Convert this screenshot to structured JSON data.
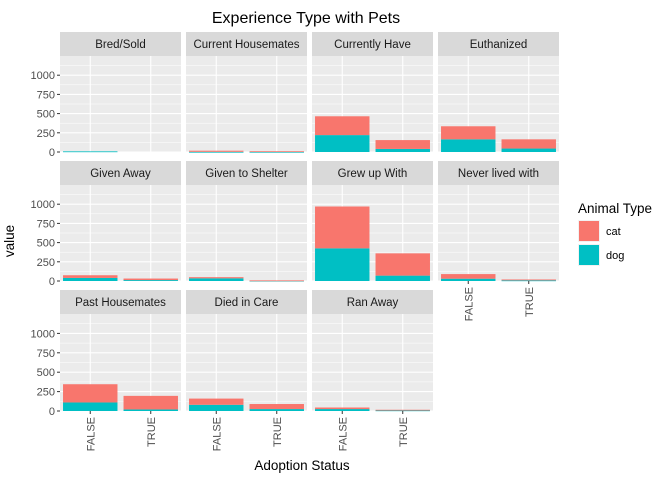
{
  "chart_data": {
    "type": "bar",
    "stacked": true,
    "faceted": true,
    "title": "Experience Type with Pets",
    "xlabel": "Adoption Status",
    "ylabel": "value",
    "categories": [
      "FALSE",
      "TRUE"
    ],
    "ylim": [
      0,
      1250
    ],
    "yticks": [
      0,
      250,
      500,
      750,
      1000
    ],
    "ytick_labels": [
      "0",
      "250",
      "500",
      "750",
      "1000"
    ],
    "grid": true,
    "legend": {
      "title": "Animal Type",
      "placement": "right",
      "entries": [
        {
          "name": "cat",
          "color": "#F8766D"
        },
        {
          "name": "dog",
          "color": "#00BFC4"
        }
      ]
    },
    "panels": [
      {
        "name": "Bred/Sold",
        "dog": [
          8,
          0
        ],
        "cat": [
          0,
          0
        ]
      },
      {
        "name": "Current Housemates",
        "dog": [
          2,
          2
        ],
        "cat": [
          15,
          8
        ]
      },
      {
        "name": "Currently Have",
        "dog": [
          220,
          40
        ],
        "cat": [
          245,
          115
        ]
      },
      {
        "name": "Euthanized",
        "dog": [
          165,
          45
        ],
        "cat": [
          170,
          120
        ]
      },
      {
        "name": "Given Away",
        "dog": [
          40,
          12
        ],
        "cat": [
          35,
          20
        ]
      },
      {
        "name": "Given to Shelter",
        "dog": [
          35,
          4
        ],
        "cat": [
          15,
          4
        ]
      },
      {
        "name": "Grew up With",
        "dog": [
          425,
          70
        ],
        "cat": [
          545,
          290
        ]
      },
      {
        "name": "Never lived with",
        "dog": [
          30,
          8
        ],
        "cat": [
          60,
          12
        ]
      },
      {
        "name": "Past Housemates",
        "dog": [
          110,
          20
        ],
        "cat": [
          235,
          175
        ]
      },
      {
        "name": "Died in Care",
        "dog": [
          80,
          25
        ],
        "cat": [
          80,
          65
        ]
      },
      {
        "name": "Ran Away",
        "dog": [
          25,
          8
        ],
        "cat": [
          20,
          8
        ]
      }
    ]
  },
  "colors": {
    "panel_bg": "#EBEBEB",
    "strip_bg": "#D9D9D9",
    "grid": "#FFFFFF",
    "cat": "#F8766D",
    "dog": "#00BFC4"
  }
}
